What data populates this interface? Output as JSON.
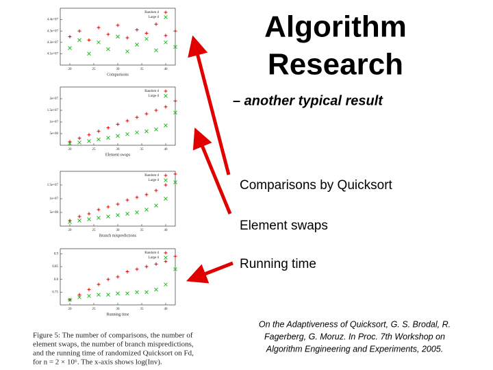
{
  "title": [
    "Algorithm",
    "Research"
  ],
  "subtitle": "– another typical result",
  "bullets": [
    "Comparisons by Quicksort",
    "Element swaps",
    "Running time"
  ],
  "citation": [
    "On the Adaptiveness of Quicksort, G. S. Brodal, R.",
    "Fagerberg, G. Moruz. In Proc. 7th Workshop on",
    "Algorithm Engineering and Experiments, 2005."
  ],
  "caption": [
    "Figure 5: The number of comparisons, the number of",
    "element swaps, the number of branch mispredictions,",
    "and the running time of randomized Quicksort on Fd,",
    "for n = 2 × 10⁶. The x-axis shows log(Inv)."
  ],
  "chart_data": [
    {
      "type": "scatter",
      "x_label": "Comparisons",
      "xlim": [
        18,
        42
      ],
      "xticks": [
        20,
        25,
        30,
        35,
        40
      ],
      "ylim": [
        4.0,
        4.5
      ],
      "yticks": [
        {
          "value": 4.1,
          "label": "4.1e+07"
        },
        {
          "value": 4.2,
          "label": "4.2e+07"
        },
        {
          "value": 4.3,
          "label": "4.3e+07"
        },
        {
          "value": 4.4,
          "label": "4.4e+07"
        }
      ],
      "x": [
        20,
        22,
        24,
        26,
        28,
        30,
        32,
        34,
        36,
        38,
        40,
        42
      ],
      "series": [
        {
          "name": "Random d",
          "color": "#e00000",
          "values": [
            4.25,
            4.3,
            4.22,
            4.33,
            4.27,
            4.35,
            4.24,
            4.31,
            4.28,
            4.36,
            4.26,
            4.3
          ]
        },
        {
          "name": "Large d",
          "color": "#22bb22",
          "values": [
            4.15,
            4.22,
            4.1,
            4.2,
            4.14,
            4.25,
            4.12,
            4.18,
            4.23,
            4.13,
            4.2,
            4.16
          ]
        }
      ]
    },
    {
      "type": "scatter",
      "x_label": "Element swaps",
      "xlim": [
        18,
        42
      ],
      "xticks": [
        20,
        25,
        30,
        35,
        40
      ],
      "ylim": [
        0,
        25
      ],
      "yticks": [
        {
          "value": 5,
          "label": "5e+06"
        },
        {
          "value": 10,
          "label": "1e+07"
        },
        {
          "value": 15,
          "label": "1.5e+07"
        },
        {
          "value": 20,
          "label": "2e+07"
        }
      ],
      "x": [
        20,
        22,
        24,
        26,
        28,
        30,
        32,
        34,
        36,
        38,
        40,
        42
      ],
      "series": [
        {
          "name": "Random d",
          "color": "#e00000",
          "values": [
            1.5,
            3,
            4.5,
            6,
            7.5,
            9,
            10.5,
            12,
            13.5,
            15,
            16.5,
            19
          ]
        },
        {
          "name": "Large d",
          "color": "#22bb22",
          "values": [
            0.8,
            1.2,
            1.8,
            2.5,
            3.2,
            4,
            4.8,
            5.5,
            6,
            6.8,
            8.5,
            14
          ]
        }
      ]
    },
    {
      "type": "scatter",
      "x_label": "Branch mispredictions",
      "xlim": [
        18,
        42
      ],
      "xticks": [
        20,
        25,
        30,
        35,
        40
      ],
      "ylim": [
        0,
        4
      ],
      "yticks": [
        {
          "value": 1,
          "label": "5e+06"
        },
        {
          "value": 2,
          "label": "1e+07"
        },
        {
          "value": 3,
          "label": "1.5e+07"
        }
      ],
      "x": [
        20,
        22,
        24,
        26,
        28,
        30,
        32,
        34,
        36,
        38,
        40,
        42
      ],
      "series": [
        {
          "name": "Random d",
          "color": "#e00000",
          "values": [
            0.4,
            0.7,
            0.9,
            1.2,
            1.4,
            1.6,
            1.9,
            2.1,
            2.3,
            2.6,
            3.0,
            3.8
          ]
        },
        {
          "name": "Large d",
          "color": "#22bb22",
          "values": [
            0.3,
            0.4,
            0.5,
            0.6,
            0.7,
            0.8,
            0.9,
            1.0,
            1.2,
            1.5,
            2.0,
            3.2
          ]
        }
      ]
    },
    {
      "type": "scatter",
      "x_label": "Running time",
      "xlim": [
        18,
        42
      ],
      "xticks": [
        20,
        25,
        30,
        35,
        40
      ],
      "ylim": [
        0.7,
        0.92
      ],
      "yticks": [
        0.75,
        0.8,
        0.85,
        0.9
      ],
      "x": [
        20,
        22,
        24,
        26,
        28,
        30,
        32,
        34,
        36,
        38,
        40,
        42
      ],
      "series": [
        {
          "name": "Random d",
          "color": "#e00000",
          "values": [
            0.72,
            0.74,
            0.76,
            0.78,
            0.8,
            0.81,
            0.83,
            0.84,
            0.85,
            0.86,
            0.87,
            0.89
          ]
        },
        {
          "name": "Large d",
          "color": "#22bb22",
          "values": [
            0.72,
            0.73,
            0.735,
            0.74,
            0.74,
            0.745,
            0.745,
            0.75,
            0.75,
            0.76,
            0.78,
            0.84
          ]
        }
      ]
    }
  ]
}
